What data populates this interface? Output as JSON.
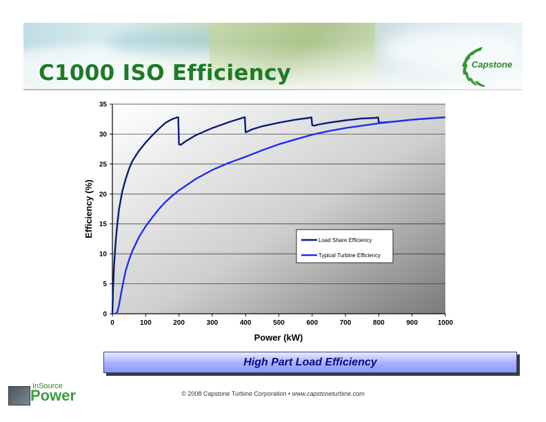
{
  "title": "C1000 ISO Efficiency",
  "logo": {
    "text": "Capstone",
    "icon": "capstone-swirl-logo"
  },
  "ribbon": "High Part Load Efficiency",
  "footer": {
    "copyright": "© 2008 Capstone Turbine Corporation",
    "separator": "•",
    "website": "www.capstoneturbine.com"
  },
  "brand": {
    "line1": "InSource",
    "line2": "Power"
  },
  "colors": {
    "title": "#1f7a26",
    "series1": "#0a1a78",
    "series2": "#1c2ef0",
    "ribbon_text": "#0a0a80"
  },
  "chart_data": {
    "type": "line",
    "title": "",
    "xlabel": "Power (kW)",
    "ylabel": "Efficiency (%)",
    "xlim": [
      0,
      1000
    ],
    "ylim": [
      0,
      35
    ],
    "xticks": [
      0,
      100,
      200,
      300,
      400,
      500,
      600,
      700,
      800,
      900,
      1000
    ],
    "yticks": [
      0,
      5,
      10,
      15,
      20,
      25,
      30,
      35
    ],
    "grid": true,
    "legend": "center-right",
    "series": [
      {
        "name": "Load Share Efficiency",
        "x": [
          0,
          2,
          5,
          10,
          15,
          20,
          30,
          40,
          50,
          60,
          80,
          100,
          120,
          140,
          160,
          180,
          195,
          198,
          200,
          205,
          220,
          250,
          300,
          350,
          390,
          398,
          400,
          405,
          420,
          450,
          500,
          550,
          590,
          598,
          600,
          605,
          620,
          650,
          700,
          750,
          790,
          798,
          800,
          805,
          850,
          900,
          950,
          1000
        ],
        "y": [
          0,
          4,
          8,
          12,
          15,
          17.5,
          20.5,
          22.5,
          24.2,
          25.5,
          27.2,
          28.6,
          29.8,
          30.9,
          31.9,
          32.5,
          32.8,
          32.8,
          28.3,
          28.2,
          28.8,
          29.8,
          31.0,
          32.0,
          32.7,
          32.8,
          30.3,
          30.4,
          30.8,
          31.3,
          31.9,
          32.4,
          32.7,
          32.8,
          31.5,
          31.4,
          31.6,
          31.9,
          32.3,
          32.6,
          32.7,
          32.8,
          32.0,
          31.9,
          32.1,
          32.4,
          32.6,
          32.8
        ]
      },
      {
        "name": "Typical Turbine Efficiency",
        "x": [
          10,
          15,
          20,
          30,
          40,
          50,
          60,
          80,
          100,
          120,
          140,
          160,
          180,
          200,
          250,
          300,
          350,
          400,
          450,
          500,
          550,
          600,
          650,
          700,
          750,
          800,
          850,
          900,
          950,
          1000
        ],
        "y": [
          0,
          0.3,
          1.5,
          4.5,
          7.2,
          9.0,
          10.5,
          12.8,
          14.6,
          16.1,
          17.5,
          18.7,
          19.7,
          20.6,
          22.5,
          24.0,
          25.2,
          26.2,
          27.3,
          28.3,
          29.1,
          29.9,
          30.5,
          31.0,
          31.4,
          31.8,
          32.1,
          32.4,
          32.6,
          32.8
        ]
      }
    ]
  }
}
